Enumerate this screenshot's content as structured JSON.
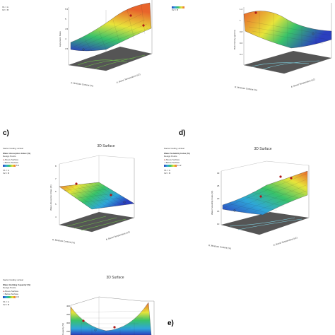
{
  "panels": [
    {
      "id": "a",
      "letter": "",
      "legend_lines": [
        "X1 = A",
        "X2 = B"
      ],
      "y_label": "Expansion Ratio",
      "x_label": "A: Moisture Content (%)",
      "z_label": "A: Barrel Temperature (oC)",
      "title": ""
    },
    {
      "id": "b",
      "letter": "",
      "legend_lines": [
        "X1 = A",
        "X2 = B"
      ],
      "y_label": "Bulk Density (g/cm3)",
      "x_label": "B: Moisture Content (%)",
      "z_label": "A: Barrel Temperature (oC)",
      "title": ""
    },
    {
      "id": "c",
      "letter": "c)",
      "header": "Factor Coding: Actual",
      "response": "Water Absorption Index (%)",
      "design_points": "Design Points",
      "above": "Above Surface",
      "below": "Below Surface",
      "range": "5.3",
      "legend_lines": [
        "X1 = A",
        "X2 = B"
      ],
      "title": "3D Surface",
      "y_label": "Water Absorption Index (%)",
      "x_label": "B: Moisture Content (%)",
      "z_label": "A: Barrel Temperature (oC)"
    },
    {
      "id": "d",
      "letter": "d)",
      "header": "Factor Coding: Actual",
      "response": "Water Solubility Index (%)",
      "design_points": "Design Points",
      "above": "Above Surface",
      "below": "Below Surface",
      "range": "11.2",
      "legend_lines": [
        "X1 = A",
        "X2 = B"
      ],
      "title": "3D Surface",
      "y_label": "Water Solubility Index (%)",
      "x_label": "B: Moisture Content (%)",
      "z_label": "A: Barrel Temperature (oC)"
    },
    {
      "id": "e",
      "letter": "e)",
      "header": "Factor Coding: Actual",
      "response": "Water Holding Capacity (%)",
      "design_points": "Design Points",
      "above": "Above Surface",
      "below": "Below Surface",
      "range": "3.0",
      "legend_lines": [
        "X1 = A",
        "X2 = B"
      ],
      "title": "3D Surface",
      "y_label": "Capacity (%)",
      "x_label": "",
      "z_label": ""
    }
  ],
  "colors": {
    "surface_low": "#2b3fbf",
    "surface_mid": "#38c26a",
    "surface_high": "#e8642b",
    "floor": "#4a4a4a",
    "point": "#b01818"
  },
  "chart_data": [
    {
      "type": "surface3d",
      "panel": "a",
      "ylabel": "Expansion Ratio",
      "xlabel": "A: Moisture Content (%)",
      "zlabel": "A: Barrel Temperature (oC)"
    },
    {
      "type": "surface3d",
      "panel": "b",
      "ylabel": "Bulk Density (g/cm3)",
      "xlabel": "B: Moisture Content (%)",
      "zlabel": "A: Barrel Temperature (oC)"
    },
    {
      "type": "surface3d",
      "panel": "c",
      "title": "3D Surface",
      "ylabel": "Water Absorption Index (%)"
    },
    {
      "type": "surface3d",
      "panel": "d",
      "title": "3D Surface",
      "ylabel": "Water Solubility Index (%)"
    },
    {
      "type": "surface3d",
      "panel": "e",
      "title": "3D Surface",
      "ylabel": "Capacity (%)"
    }
  ]
}
